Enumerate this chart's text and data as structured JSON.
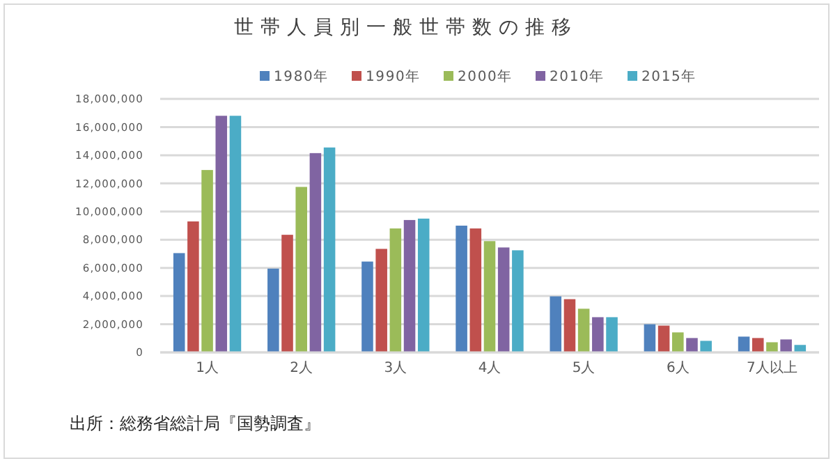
{
  "chart_data": {
    "type": "bar",
    "title": "世帯人員別一般世帯数の推移",
    "categories": [
      "1人",
      "2人",
      "3人",
      "4人",
      "5人",
      "6人",
      "7人以上"
    ],
    "series": [
      {
        "name": "1980年",
        "color": "#4f81bd",
        "values": [
          7050000,
          5950000,
          6450000,
          9000000,
          3980000,
          2000000,
          1120000
        ]
      },
      {
        "name": "1990年",
        "color": "#c0504d",
        "values": [
          9300000,
          8350000,
          7350000,
          8800000,
          3780000,
          1900000,
          1020000
        ]
      },
      {
        "name": "2000年",
        "color": "#9bbb59",
        "values": [
          12950000,
          11750000,
          8800000,
          7900000,
          3100000,
          1420000,
          720000
        ]
      },
      {
        "name": "2010年",
        "color": "#8064a2",
        "values": [
          16800000,
          14150000,
          9400000,
          7450000,
          2500000,
          1020000,
          920000
        ]
      },
      {
        "name": "2015年",
        "color": "#4bacc6",
        "values": [
          16800000,
          14550000,
          9500000,
          7250000,
          2500000,
          820000,
          530000
        ]
      }
    ],
    "ylim": [
      0,
      18000000
    ],
    "yticks": [
      {
        "value": 0,
        "label": "0"
      },
      {
        "value": 2000000,
        "label": "2,000,000"
      },
      {
        "value": 4000000,
        "label": "4,000,000"
      },
      {
        "value": 6000000,
        "label": "6,000,000"
      },
      {
        "value": 8000000,
        "label": "8,000,000"
      },
      {
        "value": 10000000,
        "label": "10,000,000"
      },
      {
        "value": 12000000,
        "label": "12,000,000"
      },
      {
        "value": 14000000,
        "label": "14,000,000"
      },
      {
        "value": 16000000,
        "label": "16,000,000"
      },
      {
        "value": 18000000,
        "label": "18,000,000"
      }
    ],
    "grid": "y",
    "legend": "top",
    "annotations": [
      "出所：総務省総計局『国勢調査』"
    ]
  }
}
